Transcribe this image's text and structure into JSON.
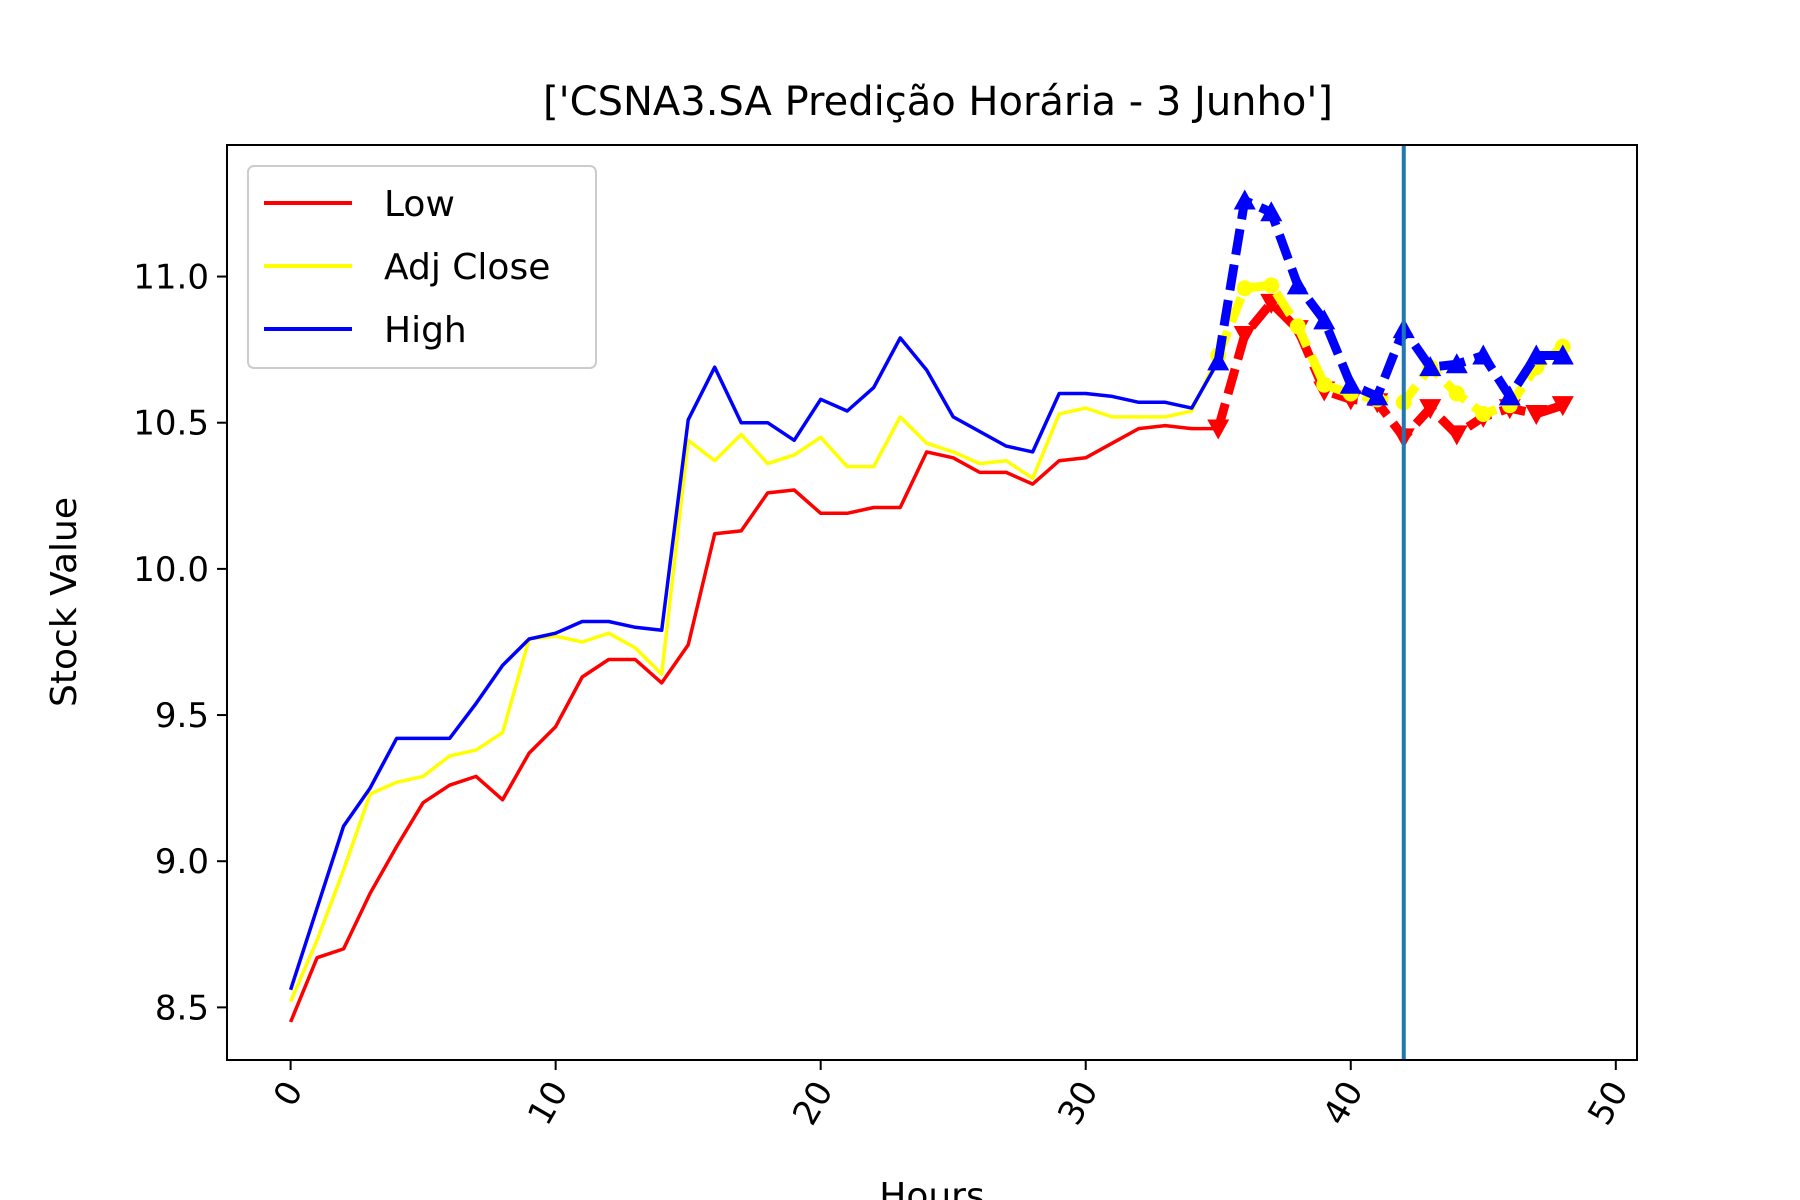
{
  "chart_data": {
    "type": "line",
    "title": "['CSNA3.SA Predição Horária - 3 Junho']",
    "xlabel": "Hours",
    "ylabel": "Stock Value",
    "xlim": [
      -2.4,
      50.8
    ],
    "ylim": [
      8.32,
      11.45
    ],
    "x_ticks": [
      "0",
      "10",
      "20",
      "30",
      "40",
      "50"
    ],
    "x_tick_values": [
      0,
      10,
      20,
      30,
      40,
      50
    ],
    "y_ticks": [
      "8.5",
      "9.0",
      "9.5",
      "10.0",
      "10.5",
      "11.0"
    ],
    "y_tick_values": [
      8.5,
      9.0,
      9.5,
      10.0,
      10.5,
      11.0
    ],
    "grid": false,
    "legend": "upper-left",
    "vline": {
      "x": 42,
      "color": "#1f77b4"
    },
    "series": [
      {
        "name": "Low",
        "color": "#ff0000",
        "values": [
          8.45,
          8.67,
          8.7,
          8.89,
          9.05,
          9.2,
          9.26,
          9.29,
          9.21,
          9.37,
          9.46,
          9.63,
          9.69,
          9.69,
          9.61,
          9.74,
          10.12,
          10.13,
          10.26,
          10.27,
          10.19,
          10.19,
          10.21,
          10.21,
          10.4,
          10.38,
          10.33,
          10.33,
          10.29,
          10.37,
          10.38,
          10.43,
          10.48,
          10.49,
          10.48,
          10.48
        ],
        "forecast": [
          10.48,
          10.8,
          10.91,
          10.82,
          10.61,
          10.58,
          10.57,
          10.45,
          10.55,
          10.46,
          10.52,
          10.55,
          10.53,
          10.56
        ],
        "forecast_marker": "triangle-down"
      },
      {
        "name": "Adj Close",
        "color": "#ffff00",
        "values": [
          8.52,
          8.73,
          8.97,
          9.23,
          9.27,
          9.29,
          9.36,
          9.38,
          9.44,
          9.76,
          9.77,
          9.75,
          9.78,
          9.73,
          9.64,
          10.44,
          10.37,
          10.46,
          10.36,
          10.39,
          10.45,
          10.35,
          10.35,
          10.52,
          10.43,
          10.4,
          10.36,
          10.37,
          10.31,
          10.53,
          10.55,
          10.52,
          10.52,
          10.52,
          10.54,
          10.73
        ],
        "forecast": [
          10.73,
          10.96,
          10.97,
          10.83,
          10.63,
          10.6,
          10.58,
          10.57,
          10.69,
          10.6,
          10.53,
          10.56,
          10.69,
          10.76
        ],
        "forecast_marker": "circle"
      },
      {
        "name": "High",
        "color": "#0000ff",
        "values": [
          8.56,
          8.84,
          9.12,
          9.25,
          9.42,
          9.42,
          9.42,
          9.54,
          9.67,
          9.76,
          9.78,
          9.82,
          9.82,
          9.8,
          9.79,
          10.51,
          10.69,
          10.5,
          10.5,
          10.44,
          10.58,
          10.54,
          10.62,
          10.79,
          10.68,
          10.52,
          10.47,
          10.42,
          10.4,
          10.6,
          10.6,
          10.59,
          10.57,
          10.57,
          10.55,
          10.71
        ],
        "forecast": [
          10.71,
          11.26,
          11.22,
          10.97,
          10.85,
          10.63,
          10.59,
          10.82,
          10.69,
          10.7,
          10.73,
          10.59,
          10.73,
          10.73
        ],
        "forecast_marker": "triangle-up"
      }
    ]
  }
}
